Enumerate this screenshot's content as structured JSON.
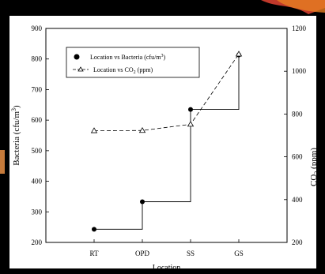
{
  "chart_data": {
    "type": "line",
    "categories": [
      "RT",
      "OPD",
      "SS",
      "GS"
    ],
    "xlabel": "Location",
    "ylabel_left": "Bacteria (cfu/m",
    "ylabel_left_sup": "3",
    "ylabel_left_tail": ")",
    "ylabel_right": "CO",
    "ylabel_right_sub": "2",
    "ylabel_right_tail": " (ppm)",
    "ylim_left": [
      200,
      900
    ],
    "yticks_left": [
      200,
      300,
      400,
      500,
      600,
      700,
      800,
      900
    ],
    "ylim_right": [
      200,
      1200
    ],
    "yticks_right": [
      200,
      400,
      600,
      800,
      1000,
      1200
    ],
    "grid": false,
    "legend_position": "top-left",
    "series": [
      {
        "name": "Location vs Bacteria (cfu/m",
        "name_sup": "3",
        "name_tail": ")",
        "axis": "left",
        "style": "step-solid-filled-circle",
        "values": [
          243,
          333,
          635,
          813
        ]
      },
      {
        "name": "Location vs CO",
        "name_sub": "2",
        "name_tail": " (ppm)",
        "axis": "right",
        "style": "dashed-open-triangle",
        "values": [
          722,
          723,
          752,
          1080
        ]
      }
    ]
  },
  "colors": {
    "line": "#000000",
    "background": "#ffffff",
    "frame": "#000000"
  }
}
